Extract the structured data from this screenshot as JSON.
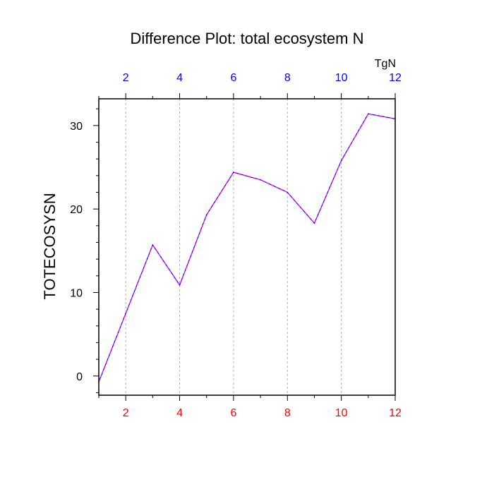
{
  "chart_data": {
    "type": "line",
    "title": "Difference Plot: total ecosystem N",
    "units": "TgN",
    "ylabel": "TOTECOSYSN",
    "xlabel": "",
    "xlim": [
      1,
      12
    ],
    "ylim": [
      -2.3,
      33.2
    ],
    "x_ticks": [
      2,
      4,
      6,
      8,
      10,
      12
    ],
    "y_ticks": [
      0,
      10,
      20,
      30
    ],
    "x_minor_ticks": [
      1,
      3,
      5,
      7,
      9,
      11
    ],
    "y_minor_step": 2,
    "bottom_tick_color": "#ff0000",
    "top_tick_color": "#0000ff",
    "grid": "vertical dashed at major x ticks",
    "series": [
      {
        "line_color": "#0000ff",
        "overlay_color": "#ff00ff",
        "dash": "dashed",
        "x": [
          1,
          2,
          3,
          4,
          5,
          6,
          7,
          8,
          9,
          10,
          11,
          12
        ],
        "y": [
          -0.7,
          7.5,
          15.7,
          10.9,
          19.3,
          24.4,
          23.5,
          22.0,
          18.3,
          25.8,
          31.4,
          30.8
        ]
      }
    ]
  }
}
